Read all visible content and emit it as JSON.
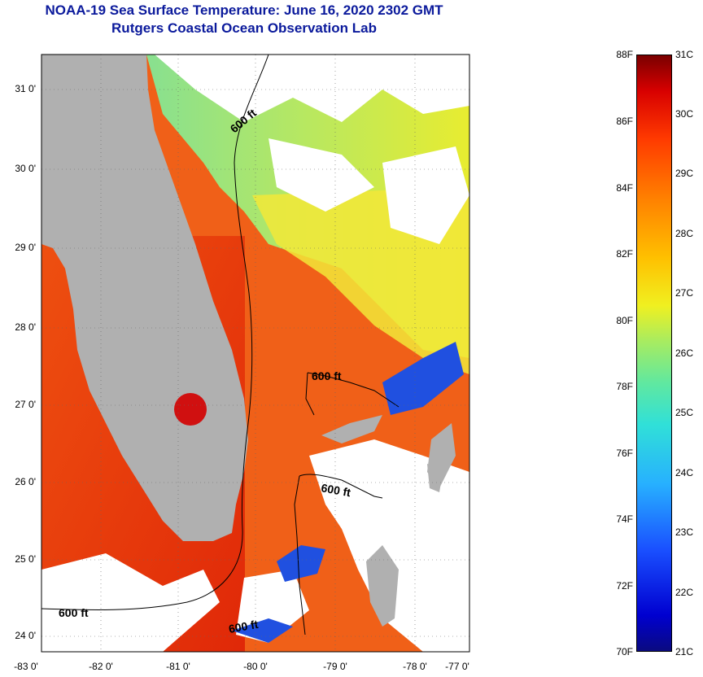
{
  "title": {
    "line1": "NOAA-19 Sea Surface Temperature:  June 16, 2020 2302 GMT",
    "line2": "Rutgers Coastal Ocean Observation Lab"
  },
  "axes": {
    "lat_labels": [
      "31 0'",
      "30 0'",
      "29 0'",
      "28 0'",
      "27 0'",
      "26 0'",
      "25 0'",
      "24 0'"
    ],
    "lon_labels": [
      "-83 0'",
      "-82 0'",
      "-81 0'",
      "-80 0'",
      "-79 0'",
      "-78 0'",
      "-77 0'"
    ]
  },
  "contour_label": "600 ft",
  "colorbar": {
    "fahrenheit": [
      "88F",
      "86F",
      "84F",
      "82F",
      "80F",
      "78F",
      "76F",
      "74F",
      "72F",
      "70F"
    ],
    "celsius": [
      "31C",
      "30C",
      "29C",
      "28C",
      "27C",
      "26C",
      "25C",
      "24C",
      "23C",
      "22C",
      "21C"
    ]
  },
  "colors": {
    "title": "#0b1a9c",
    "land": "#b0b0b0",
    "warm": "#e83a0a",
    "cool": "#9adc70"
  }
}
